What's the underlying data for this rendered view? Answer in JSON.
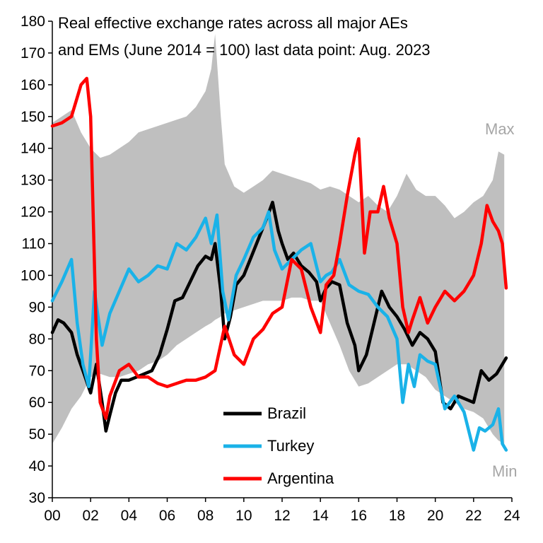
{
  "chart_data": {
    "type": "line",
    "title_lines": [
      "Real effective exchange rates across all major AEs",
      "and EMs (June 2014  = 100)  last data point: Aug. 2023"
    ],
    "xlabel": "",
    "ylabel": "",
    "xlim": [
      2000,
      2024
    ],
    "ylim": [
      30,
      180
    ],
    "x_ticks": [
      {
        "value": 2000,
        "label": "00"
      },
      {
        "value": 2002,
        "label": "02"
      },
      {
        "value": 2004,
        "label": "04"
      },
      {
        "value": 2006,
        "label": "06"
      },
      {
        "value": 2008,
        "label": "08"
      },
      {
        "value": 2010,
        "label": "10"
      },
      {
        "value": 2012,
        "label": "12"
      },
      {
        "value": 2014,
        "label": "14"
      },
      {
        "value": 2016,
        "label": "16"
      },
      {
        "value": 2018,
        "label": "18"
      },
      {
        "value": 2020,
        "label": "20"
      },
      {
        "value": 2022,
        "label": "22"
      },
      {
        "value": 2024,
        "label": "24"
      }
    ],
    "y_ticks": [
      30,
      40,
      50,
      60,
      70,
      80,
      90,
      100,
      110,
      120,
      130,
      140,
      150,
      160,
      170,
      180
    ],
    "band": {
      "name": "Max-Min range",
      "max_label": "Max",
      "min_label": "Min",
      "color": "#bfbfbf",
      "x": [
        2000.0,
        2000.5,
        2001.0,
        2001.5,
        2002.0,
        2002.5,
        2003.0,
        2003.5,
        2004.0,
        2004.5,
        2005.0,
        2005.5,
        2006.0,
        2006.5,
        2007.0,
        2007.5,
        2008.0,
        2008.3,
        2008.5,
        2008.8,
        2009.0,
        2009.5,
        2010.0,
        2010.5,
        2011.0,
        2011.5,
        2012.0,
        2012.5,
        2013.0,
        2013.5,
        2014.0,
        2014.5,
        2015.0,
        2015.5,
        2016.0,
        2016.5,
        2017.0,
        2017.5,
        2018.0,
        2018.5,
        2019.0,
        2019.5,
        2020.0,
        2020.5,
        2021.0,
        2021.5,
        2022.0,
        2022.5,
        2023.0,
        2023.3,
        2023.6
      ],
      "max": [
        148,
        150,
        152,
        145,
        140,
        137,
        138,
        140,
        142,
        145,
        146,
        147,
        148,
        149,
        150,
        153,
        158,
        165,
        176,
        150,
        135,
        128,
        126,
        128,
        130,
        133,
        132,
        131,
        130,
        129,
        127,
        128,
        127,
        125,
        123,
        125,
        122,
        120,
        125,
        132,
        127,
        125,
        125,
        122,
        118,
        120,
        123,
        125,
        130,
        139,
        138
      ],
      "min": [
        47,
        52,
        58,
        62,
        68,
        69,
        68,
        68,
        69,
        70,
        72,
        73,
        75,
        78,
        80,
        82,
        84,
        85,
        86,
        87,
        88,
        89,
        90,
        91,
        92,
        92,
        92,
        93,
        93,
        92,
        92,
        85,
        78,
        70,
        65,
        66,
        68,
        70,
        72,
        72,
        70,
        68,
        64,
        62,
        60,
        58,
        57,
        55,
        50,
        48,
        47
      ]
    },
    "series": [
      {
        "name": "Brazil",
        "color": "#000000",
        "x": [
          2000.0,
          2000.3,
          2000.6,
          2001.0,
          2001.3,
          2001.6,
          2002.0,
          2002.3,
          2002.6,
          2002.8,
          2003.0,
          2003.3,
          2003.6,
          2004.0,
          2004.4,
          2004.8,
          2005.2,
          2005.6,
          2006.0,
          2006.4,
          2006.8,
          2007.2,
          2007.6,
          2008.0,
          2008.3,
          2008.5,
          2008.8,
          2009.0,
          2009.3,
          2009.6,
          2010.0,
          2010.4,
          2010.8,
          2011.2,
          2011.5,
          2011.8,
          2012.0,
          2012.3,
          2012.6,
          2013.0,
          2013.4,
          2013.8,
          2014.0,
          2014.3,
          2014.6,
          2015.0,
          2015.4,
          2015.8,
          2016.0,
          2016.4,
          2016.8,
          2017.2,
          2017.6,
          2018.0,
          2018.4,
          2018.8,
          2019.2,
          2019.6,
          2020.0,
          2020.4,
          2020.8,
          2021.2,
          2021.6,
          2022.0,
          2022.4,
          2022.8,
          2023.2,
          2023.5,
          2023.7
        ],
        "values": [
          82,
          86,
          85,
          82,
          75,
          70,
          63,
          72,
          60,
          51,
          56,
          63,
          67,
          67,
          68,
          69,
          70,
          75,
          83,
          92,
          93,
          98,
          103,
          106,
          105,
          110,
          95,
          80,
          87,
          97,
          100,
          106,
          112,
          118,
          123,
          114,
          110,
          105,
          107,
          103,
          101,
          98,
          92,
          96,
          98,
          97,
          85,
          78,
          70,
          75,
          85,
          95,
          90,
          87,
          83,
          78,
          82,
          80,
          76,
          60,
          58,
          62,
          61,
          60,
          70,
          67,
          69,
          72,
          74
        ]
      },
      {
        "name": "Turkey",
        "color": "#1ab2e8",
        "x": [
          2000.0,
          2000.5,
          2001.0,
          2001.3,
          2001.6,
          2001.9,
          2002.2,
          2002.6,
          2003.0,
          2003.5,
          2004.0,
          2004.5,
          2005.0,
          2005.5,
          2006.0,
          2006.5,
          2007.0,
          2007.5,
          2008.0,
          2008.3,
          2008.6,
          2008.9,
          2009.2,
          2009.6,
          2010.0,
          2010.5,
          2011.0,
          2011.3,
          2011.6,
          2012.0,
          2012.5,
          2013.0,
          2013.5,
          2014.0,
          2014.3,
          2014.6,
          2015.0,
          2015.5,
          2016.0,
          2016.5,
          2017.0,
          2017.5,
          2018.0,
          2018.3,
          2018.6,
          2018.9,
          2019.2,
          2019.6,
          2020.0,
          2020.5,
          2021.0,
          2021.5,
          2022.0,
          2022.3,
          2022.6,
          2023.0,
          2023.3,
          2023.5,
          2023.7
        ],
        "values": [
          92,
          98,
          105,
          85,
          72,
          65,
          95,
          78,
          88,
          95,
          102,
          98,
          100,
          103,
          102,
          110,
          108,
          112,
          118,
          110,
          119,
          95,
          86,
          100,
          105,
          112,
          115,
          120,
          108,
          102,
          105,
          108,
          110,
          98,
          100,
          101,
          105,
          97,
          95,
          94,
          90,
          87,
          80,
          60,
          72,
          65,
          75,
          73,
          72,
          58,
          62,
          57,
          45,
          52,
          51,
          53,
          58,
          47,
          45
        ]
      },
      {
        "name": "Argentina",
        "color": "#ff0000",
        "x": [
          2000.0,
          2000.5,
          2001.0,
          2001.5,
          2001.8,
          2002.0,
          2002.3,
          2002.5,
          2002.8,
          2003.0,
          2003.5,
          2004.0,
          2004.5,
          2005.0,
          2005.5,
          2006.0,
          2006.5,
          2007.0,
          2007.5,
          2008.0,
          2008.5,
          2009.0,
          2009.5,
          2010.0,
          2010.5,
          2011.0,
          2011.5,
          2012.0,
          2012.5,
          2013.0,
          2013.5,
          2014.0,
          2014.3,
          2014.7,
          2015.0,
          2015.4,
          2015.8,
          2016.0,
          2016.3,
          2016.6,
          2017.0,
          2017.3,
          2017.6,
          2018.0,
          2018.3,
          2018.6,
          2018.8,
          2019.2,
          2019.6,
          2020.0,
          2020.5,
          2021.0,
          2021.5,
          2022.0,
          2022.4,
          2022.7,
          2023.0,
          2023.3,
          2023.5,
          2023.7
        ],
        "values": [
          147,
          148,
          150,
          160,
          162,
          150,
          80,
          60,
          55,
          62,
          70,
          72,
          68,
          68,
          66,
          65,
          66,
          67,
          67,
          68,
          70,
          84,
          75,
          72,
          80,
          83,
          88,
          90,
          105,
          102,
          90,
          82,
          97,
          100,
          110,
          125,
          138,
          143,
          107,
          120,
          120,
          128,
          118,
          110,
          90,
          82,
          86,
          93,
          85,
          90,
          95,
          92,
          95,
          100,
          110,
          122,
          117,
          114,
          110,
          96
        ]
      }
    ],
    "legend": {
      "position": "bottom-center",
      "entries": [
        "Brazil",
        "Turkey",
        "Argentina"
      ]
    }
  }
}
